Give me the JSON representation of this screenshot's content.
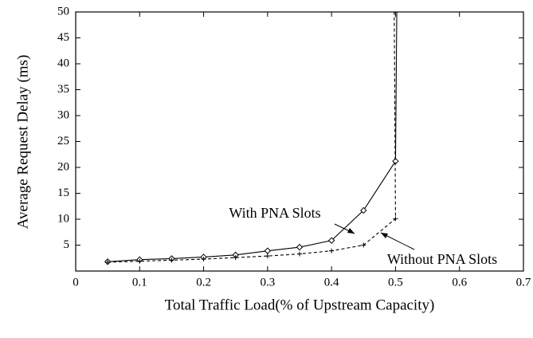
{
  "chart_data": {
    "type": "line",
    "x_label": "Total Traffic Load(% of Upstream Capacity)",
    "y_label": "Average Request Delay (ms)",
    "series": [
      {
        "name": "With PNA Slots",
        "color": "#000000",
        "dash": "solid",
        "marker": "diamond",
        "x": [
          0.05,
          0.1,
          0.15,
          0.2,
          0.25,
          0.3,
          0.35,
          0.4,
          0.45,
          0.5,
          0.502
        ],
        "values": [
          1.8,
          2.2,
          2.4,
          2.7,
          3.1,
          3.9,
          4.6,
          5.9,
          11.7,
          21.2,
          50
        ]
      },
      {
        "name": "Without PNA Slots",
        "color": "#000000",
        "dash": "dashed",
        "marker": "plus",
        "x": [
          0.05,
          0.1,
          0.15,
          0.2,
          0.25,
          0.3,
          0.35,
          0.4,
          0.45,
          0.5,
          0.498
        ],
        "values": [
          1.7,
          1.9,
          2.1,
          2.3,
          2.6,
          2.9,
          3.3,
          3.9,
          5.0,
          10.1,
          50
        ]
      }
    ],
    "xlim": [
      0,
      0.7
    ],
    "xticks": [
      0,
      0.1,
      0.2,
      0.3,
      0.4,
      0.5,
      0.6,
      0.7
    ],
    "ylim": [
      0,
      50
    ],
    "yticks": [
      5,
      10,
      15,
      20,
      25,
      30,
      35,
      40,
      45,
      50
    ],
    "grid": false
  }
}
